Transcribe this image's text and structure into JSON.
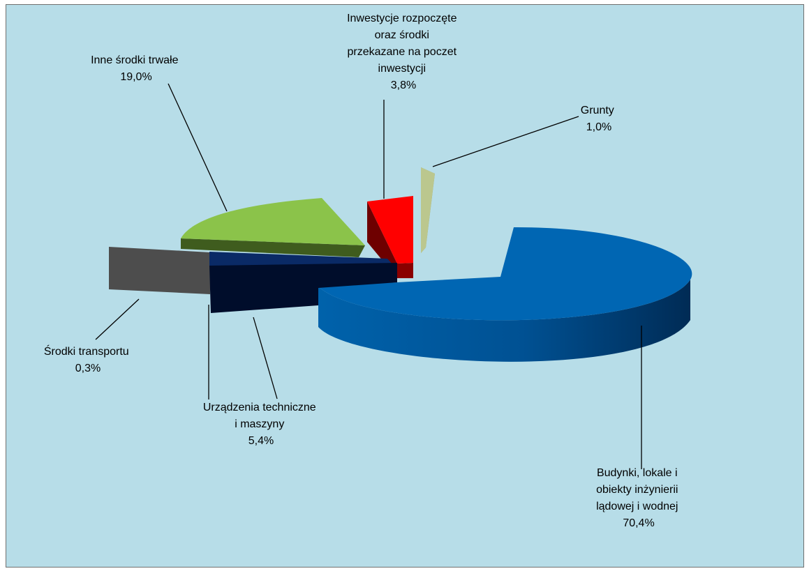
{
  "chart_data": {
    "type": "pie",
    "title": "",
    "slices": [
      {
        "label_lines": [
          "Budynki, lokale i",
          "obiekty inżynierii",
          "lądowej i wodnej"
        ],
        "value_label": "70,4%",
        "value": 70.4,
        "color": "#0066b3",
        "side_color": "#003a6e"
      },
      {
        "label_lines": [
          "Inwestycje rozpoczęte",
          "oraz środki",
          "przekazane na poczet",
          "inwestycji"
        ],
        "value_label": "3,8%",
        "value": 3.8,
        "color": "#ff0000",
        "side_color": "#6e0000"
      },
      {
        "label_lines": [
          "Grunty"
        ],
        "value_label": "1,0%",
        "value": 1.0,
        "color": "#c3cf96",
        "side_color": "#8e9a60"
      },
      {
        "label_lines": [
          "Inne środki trwałe"
        ],
        "value_label": "19,0%",
        "value": 19.0,
        "color": "#8bc34a",
        "side_color": "#3f5c1e"
      },
      {
        "label_lines": [
          "Środki transportu"
        ],
        "value_label": "0,3%",
        "value": 0.3,
        "color": "#4d4d4d",
        "side_color": "#404040"
      },
      {
        "label_lines": [
          "Urządzenia techniczne",
          "i maszyny"
        ],
        "value_label": "5,4%",
        "value": 5.4,
        "color": "#0a2a66",
        "side_color": "#00112e"
      }
    ],
    "legend": "none",
    "view": "3d-exploded"
  }
}
